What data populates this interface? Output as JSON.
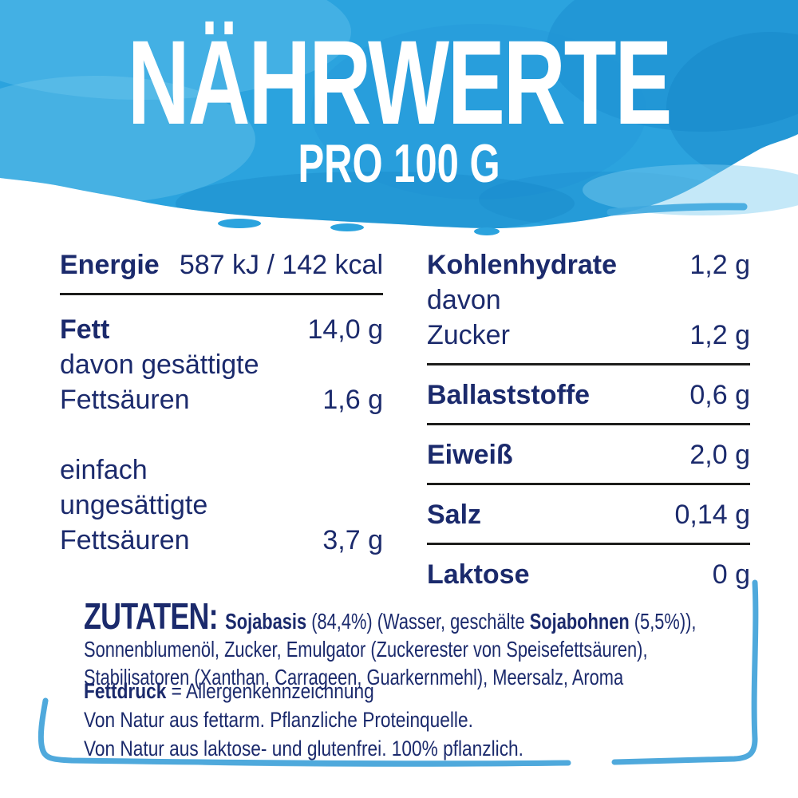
{
  "header": {
    "title": "NÄHRWERTE",
    "subtitle": "PRO 100 G"
  },
  "nutrition": {
    "left": {
      "rows": [
        {
          "label": "Energie",
          "value": "587 kJ / 142 kcal"
        },
        {
          "label": "Fett",
          "value": "14,0 g"
        },
        {
          "label": "davon gesättigte",
          "value": ""
        },
        {
          "label": "Fettsäuren",
          "value": "1,6 g"
        },
        {
          "label": "einfach",
          "value": ""
        },
        {
          "label": "ungesättigte",
          "value": ""
        },
        {
          "label": "Fettsäuren",
          "value": "3,7 g"
        }
      ]
    },
    "right": {
      "rows": [
        {
          "label": "Kohlenhydrate",
          "value": "1,2 g"
        },
        {
          "label": "davon",
          "value": ""
        },
        {
          "label": "Zucker",
          "value": "1,2 g"
        },
        {
          "label": "Ballaststoffe",
          "value": "0,6 g"
        },
        {
          "label": "Eiweiß",
          "value": "2,0 g"
        },
        {
          "label": "Salz",
          "value": "0,14 g"
        },
        {
          "label": "Laktose",
          "value": "0 g"
        }
      ]
    }
  },
  "ingredients": {
    "heading": "ZUTATEN:",
    "segments": [
      {
        "t": "Sojabasis",
        "b": true
      },
      {
        "t": " (84,4%) (Wasser, geschälte ",
        "b": false
      },
      {
        "t": "Sojabohnen",
        "b": true
      },
      {
        "t": " (5,5%)), Sonnenblumenöl, Zucker, Emulgator (Zuckerester von Speisefettsäuren), Stabilisatoren (Xanthan, Carrageen, Guarkernmehl), Meersalz, Aroma",
        "b": false
      }
    ]
  },
  "footnotes": {
    "line1_segments": [
      {
        "t": "Fettdruck",
        "b": true
      },
      {
        "t": " = Allergenkennzeichnung",
        "b": false
      }
    ],
    "line2": "Von Natur aus fettarm. Pflanzliche Proteinquelle.",
    "line3": "Von Natur aus laktose- und glutenfrei. 100% pflanzlich."
  },
  "colors": {
    "header_blue": "#2BA3DE",
    "header_blue_dark": "#1583C6",
    "header_blue_light": "#6CC6EE",
    "navy_text": "#1B2A6C",
    "divider_dark": "#1D1D1B",
    "brush_blue": "#4FA9DC",
    "title_white": "#FFFFFF"
  }
}
